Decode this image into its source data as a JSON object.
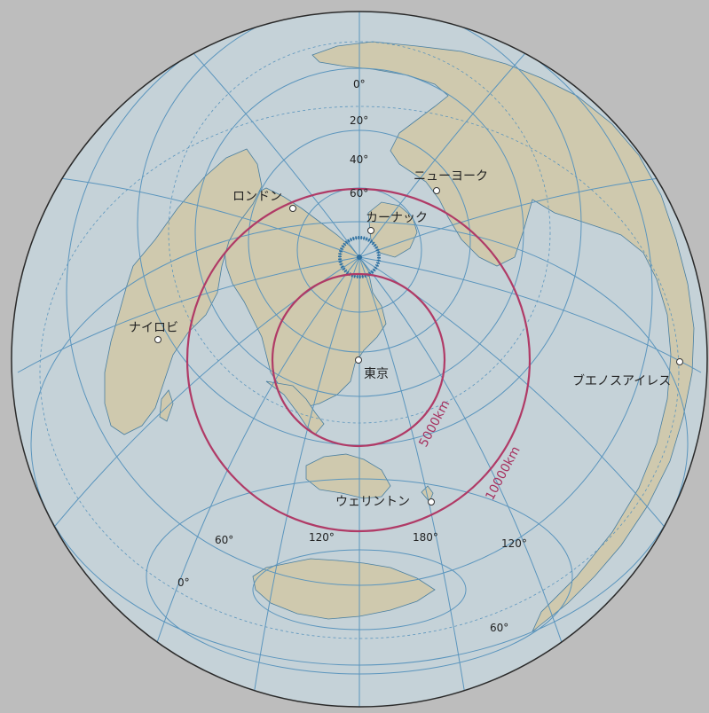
{
  "map": {
    "colors": {
      "background": "#bdbdbd",
      "ocean": "#c5d2d8",
      "land": "#cfc9ae",
      "graticule": "#5b95bd",
      "distance_ring": "#b03a66",
      "outline": "#2a2a2a"
    },
    "center_city": "東京",
    "cities": {
      "tokyo": "東京",
      "london": "ロンドン",
      "new_york": "ニューヨーク",
      "qaanaaq": "カーナック",
      "nairobi": "ナイロビ",
      "buenos_aires": "ブエノスアイレス",
      "wellington": "ウェリントン"
    },
    "distance_rings": {
      "inner": "5000km",
      "outer": "10000km"
    },
    "latitude_labels": [
      "0°",
      "20°",
      "40°",
      "60°"
    ],
    "longitude_labels": {
      "lon60": "60°",
      "lon120_left": "120°",
      "lon180": "180°",
      "lon120_right": "120°",
      "lon0": "0°",
      "lat60_south": "60°"
    }
  }
}
